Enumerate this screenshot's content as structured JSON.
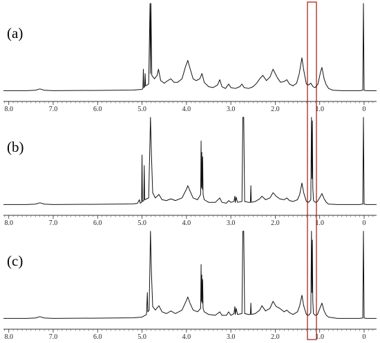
{
  "chart_data": [
    {
      "type": "line",
      "title": "(a)",
      "color": "#111111",
      "x": [
        8.12,
        7.6,
        7.4,
        7.3,
        7.2,
        7.0,
        6.0,
        5.2,
        5.0,
        4.98,
        4.97,
        4.96,
        4.94,
        4.93,
        4.92,
        4.85,
        4.82,
        4.81,
        4.8,
        4.78,
        4.72,
        4.66,
        4.63,
        4.58,
        4.5,
        4.42,
        4.35,
        4.28,
        4.2,
        4.1,
        4.02,
        3.97,
        3.92,
        3.85,
        3.78,
        3.7,
        3.65,
        3.6,
        3.5,
        3.4,
        3.3,
        3.25,
        3.2,
        3.12,
        3.05,
        3.0,
        2.9,
        2.8,
        2.75,
        2.7,
        2.6,
        2.5,
        2.42,
        2.35,
        2.28,
        2.2,
        2.12,
        2.05,
        2.0,
        1.95,
        1.88,
        1.8,
        1.74,
        1.68,
        1.6,
        1.52,
        1.46,
        1.4,
        1.36,
        1.3,
        1.25,
        1.2,
        1.15,
        1.1,
        1.04,
        0.98,
        0.95,
        0.9,
        0.86,
        0.8,
        0.7,
        0.5,
        0.1,
        0.03,
        0.015,
        0.0,
        -0.05,
        -0.28
      ],
      "values": [
        0.5,
        0.5,
        1,
        2.5,
        1,
        0.5,
        0.8,
        1.2,
        2,
        3,
        25,
        4,
        5,
        20,
        6,
        8,
        100,
        20,
        100,
        18,
        14,
        18,
        25,
        12,
        9,
        12,
        14,
        10,
        10,
        14,
        28,
        35,
        26,
        14,
        12,
        14,
        20,
        10,
        5,
        4,
        7,
        13,
        5,
        3,
        8,
        4,
        3,
        5,
        8,
        4,
        3,
        5,
        9,
        14,
        18,
        12,
        16,
        25,
        20,
        15,
        10,
        11,
        13,
        8,
        6,
        9,
        20,
        38,
        24,
        8,
        7,
        9,
        5,
        4,
        8,
        22,
        27,
        14,
        8,
        3,
        1,
        0.5,
        0.5,
        1,
        100,
        1,
        0.5,
        0.5
      ],
      "xlim": [
        8.12,
        -0.28
      ],
      "ylim": [
        0,
        100
      ],
      "xticks": [
        {
          "value": 8,
          "label": "8.0"
        },
        {
          "value": 7,
          "label": "7.0"
        },
        {
          "value": 6,
          "label": "6.0"
        },
        {
          "value": 5,
          "label": "5.0"
        },
        {
          "value": 4,
          "label": "4.0"
        },
        {
          "value": 3,
          "label": "3.0"
        },
        {
          "value": 2,
          "label": "2.0"
        },
        {
          "value": 1,
          "label": "1.0"
        },
        0
      ]
    },
    {
      "type": "line",
      "title": "(b)",
      "color": "#111111",
      "x": [
        8.12,
        7.6,
        7.4,
        7.3,
        7.2,
        7.0,
        6.0,
        5.2,
        5.1,
        5.06,
        5.04,
        5.01,
        5.0,
        4.99,
        4.96,
        4.95,
        4.94,
        4.85,
        4.81,
        4.79,
        4.76,
        4.7,
        4.62,
        4.55,
        4.45,
        4.35,
        4.25,
        4.1,
        4.0,
        3.97,
        3.92,
        3.85,
        3.75,
        3.68,
        3.67,
        3.665,
        3.655,
        3.645,
        3.635,
        3.625,
        3.6,
        3.5,
        3.35,
        3.25,
        3.2,
        3.1,
        3.05,
        3.0,
        2.93,
        2.91,
        2.9,
        2.88,
        2.85,
        2.75,
        2.73,
        2.71,
        2.69,
        2.6,
        2.56,
        2.55,
        2.54,
        2.45,
        2.35,
        2.3,
        2.22,
        2.12,
        2.05,
        1.98,
        1.9,
        1.8,
        1.74,
        1.68,
        1.6,
        1.5,
        1.45,
        1.4,
        1.36,
        1.3,
        1.25,
        1.2,
        1.185,
        1.175,
        1.165,
        1.155,
        1.14,
        1.1,
        1.05,
        0.98,
        0.95,
        0.9,
        0.85,
        0.8,
        0.6,
        0.1,
        0.03,
        0.015,
        0.0,
        -0.05,
        -0.28
      ],
      "values": [
        0.5,
        0.5,
        1,
        2.5,
        1,
        0.5,
        0.8,
        1.2,
        2,
        6,
        2,
        3,
        57,
        4,
        5,
        45,
        6,
        8,
        100,
        60,
        14,
        8,
        12,
        6,
        5,
        7,
        5,
        8,
        18,
        22,
        16,
        8,
        6,
        12,
        73,
        20,
        60,
        18,
        55,
        12,
        6,
        3,
        3,
        8,
        3,
        2,
        5,
        3,
        4,
        10,
        3,
        9,
        3,
        4,
        100,
        100,
        4,
        3,
        3,
        22,
        3,
        4,
        7,
        10,
        6,
        8,
        14,
        10,
        7,
        6,
        8,
        5,
        4,
        6,
        12,
        25,
        14,
        4,
        3,
        6,
        100,
        30,
        96,
        20,
        5,
        3,
        4,
        10,
        13,
        7,
        3,
        1,
        0.5,
        0.5,
        1,
        100,
        1,
        0.5,
        0.5
      ],
      "xlim": [
        8.12,
        -0.28
      ],
      "ylim": [
        0,
        100
      ],
      "xticks": [
        {
          "value": 8,
          "label": "8.0"
        },
        {
          "value": 7,
          "label": "7.0"
        },
        {
          "value": 6,
          "label": "6.0"
        },
        {
          "value": 5,
          "label": "5.0"
        },
        {
          "value": 4,
          "label": "4.0"
        },
        {
          "value": 3,
          "label": "3.0"
        },
        {
          "value": 2,
          "label": "2.0"
        },
        {
          "value": 1,
          "label": "1.0"
        },
        0
      ]
    },
    {
      "type": "line",
      "title": "(c)",
      "color": "#111111",
      "x": [
        8.12,
        7.6,
        7.4,
        7.3,
        7.2,
        7.0,
        6.0,
        5.2,
        5.0,
        4.9,
        4.88,
        4.87,
        4.84,
        4.81,
        4.79,
        4.76,
        4.7,
        4.62,
        4.55,
        4.45,
        4.35,
        4.25,
        4.1,
        4.0,
        3.97,
        3.92,
        3.85,
        3.75,
        3.68,
        3.67,
        3.665,
        3.655,
        3.645,
        3.635,
        3.625,
        3.6,
        3.5,
        3.35,
        3.25,
        3.2,
        3.1,
        3.05,
        3.0,
        2.93,
        2.91,
        2.9,
        2.88,
        2.85,
        2.75,
        2.73,
        2.71,
        2.69,
        2.6,
        2.56,
        2.55,
        2.54,
        2.45,
        2.35,
        2.3,
        2.22,
        2.12,
        2.05,
        1.98,
        1.9,
        1.8,
        1.74,
        1.68,
        1.6,
        1.5,
        1.45,
        1.4,
        1.36,
        1.3,
        1.25,
        1.2,
        1.185,
        1.175,
        1.165,
        1.155,
        1.14,
        1.1,
        1.05,
        0.98,
        0.95,
        0.9,
        0.85,
        0.8,
        0.6,
        0.1,
        0.03,
        0.015,
        0.0,
        -0.05,
        -0.28
      ],
      "values": [
        0.5,
        0.5,
        1,
        2.5,
        1,
        0.5,
        0.8,
        1.2,
        2,
        5,
        30,
        8,
        10,
        100,
        55,
        14,
        10,
        15,
        8,
        6,
        9,
        6,
        10,
        21,
        25,
        18,
        10,
        8,
        12,
        62,
        20,
        50,
        18,
        45,
        12,
        8,
        5,
        4,
        8,
        4,
        4,
        8,
        4,
        6,
        14,
        5,
        12,
        5,
        6,
        100,
        100,
        6,
        5,
        5,
        18,
        5,
        6,
        10,
        15,
        9,
        12,
        20,
        14,
        12,
        8,
        10,
        7,
        5,
        8,
        15,
        27,
        15,
        5,
        4,
        7,
        100,
        30,
        90,
        20,
        6,
        4,
        5,
        14,
        18,
        9,
        4,
        2,
        0.5,
        0.5,
        1,
        100,
        1,
        0.5,
        0.5
      ],
      "xlim": [
        8.12,
        -0.28
      ],
      "ylim": [
        0,
        100
      ],
      "xticks": [
        {
          "value": 8,
          "label": "8.0"
        },
        {
          "value": 7,
          "label": "7.0"
        },
        {
          "value": 6,
          "label": "6.0"
        },
        {
          "value": 5,
          "label": "5.0"
        },
        {
          "value": 4,
          "label": "4.0"
        },
        {
          "value": 3,
          "label": "3.0"
        },
        {
          "value": 2,
          "label": "2.0"
        },
        {
          "value": 1,
          "label": "1.0"
        },
        0
      ]
    }
  ]
}
